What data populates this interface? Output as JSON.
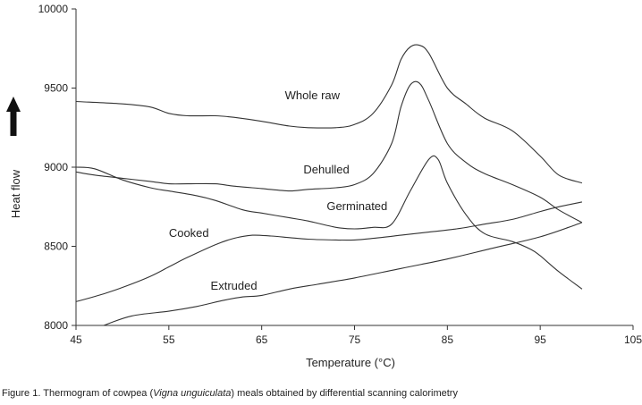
{
  "chart_data": {
    "type": "line",
    "title": "",
    "xlabel": "Temperature (°C)",
    "ylabel": "Heat flow",
    "xlim": [
      45,
      105
    ],
    "ylim": [
      8000,
      10000
    ],
    "xticks": [
      45,
      55,
      65,
      75,
      85,
      95,
      105
    ],
    "yticks": [
      8000,
      8500,
      9000,
      9500,
      10000
    ],
    "grid": false,
    "series": [
      {
        "name": "Whole raw",
        "label_at": [
          67.5,
          9430
        ],
        "x": [
          45,
          50,
          53,
          55,
          57,
          60,
          62,
          65,
          68,
          70,
          73,
          75,
          77,
          79,
          80,
          81,
          82,
          83,
          85,
          87,
          89,
          92,
          95,
          97,
          99.5
        ],
        "y": [
          9415,
          9400,
          9380,
          9340,
          9325,
          9325,
          9315,
          9290,
          9260,
          9250,
          9250,
          9270,
          9340,
          9520,
          9680,
          9760,
          9770,
          9720,
          9500,
          9400,
          9310,
          9230,
          9070,
          8950,
          8900
        ]
      },
      {
        "name": "Dehulled",
        "label_at": [
          69.5,
          8960
        ],
        "x": [
          45,
          47,
          50,
          53,
          55,
          57,
          60,
          62,
          65,
          68,
          70,
          73,
          75,
          77,
          79,
          80,
          81,
          82,
          83,
          85,
          87,
          89,
          92,
          95,
          97,
          99.5
        ],
        "y": [
          8970,
          8950,
          8930,
          8910,
          8895,
          8895,
          8895,
          8880,
          8865,
          8850,
          8860,
          8870,
          8890,
          8960,
          9150,
          9380,
          9520,
          9530,
          9420,
          9150,
          9030,
          8960,
          8890,
          8810,
          8730,
          8650
        ]
      },
      {
        "name": "Germinated",
        "label_at": [
          72,
          8730
        ],
        "x": [
          45,
          47,
          50,
          53,
          55,
          58,
          60,
          63,
          65,
          68,
          70,
          73,
          75,
          77,
          79,
          81,
          83,
          84,
          85,
          87,
          89,
          92,
          94,
          95,
          97,
          99.5
        ],
        "y": [
          9000,
          8990,
          8920,
          8870,
          8850,
          8820,
          8790,
          8730,
          8710,
          8680,
          8660,
          8620,
          8610,
          8620,
          8640,
          8850,
          9050,
          9050,
          8900,
          8700,
          8580,
          8530,
          8480,
          8440,
          8340,
          8230
        ]
      },
      {
        "name": "Cooked",
        "label_at": [
          55,
          8560
        ],
        "x": [
          45,
          48,
          50,
          53,
          55,
          57,
          60,
          62,
          64,
          66,
          68,
          70,
          73,
          75,
          77,
          80,
          83,
          86,
          89,
          92,
          95,
          97,
          99.5
        ],
        "y": [
          8150,
          8200,
          8240,
          8310,
          8370,
          8430,
          8510,
          8550,
          8570,
          8565,
          8555,
          8545,
          8540,
          8540,
          8550,
          8570,
          8590,
          8610,
          8640,
          8670,
          8720,
          8750,
          8780
        ]
      },
      {
        "name": "Extruded",
        "label_at": [
          59.5,
          8225
        ],
        "x": [
          48,
          51,
          55,
          58,
          61,
          63,
          65,
          68,
          71,
          75,
          80,
          85,
          90,
          95,
          99.5
        ],
        "y": [
          8000,
          8060,
          8090,
          8120,
          8160,
          8180,
          8190,
          8230,
          8260,
          8300,
          8360,
          8420,
          8490,
          8560,
          8650
        ]
      }
    ]
  },
  "caption": {
    "prefix": "Figure 1. Thermogram of cowpea (",
    "species": "Vigna unguiculata",
    "suffix": ") meals obtained by differential scanning calorimetry"
  },
  "colors": {
    "line": "#333333",
    "arrow": "#111111"
  },
  "icons": {
    "heat_flow_arrow": "up-arrow-icon"
  }
}
